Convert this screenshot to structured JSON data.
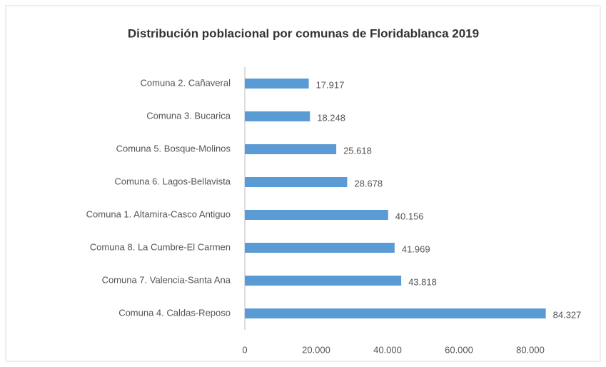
{
  "chart_data": {
    "type": "barh",
    "title": "Distribución poblacional por comunas de Floridablanca 2019",
    "categories": [
      "Comuna 2. Cañaveral",
      "Comuna 3. Bucarica",
      "Comuna 5. Bosque-Molinos",
      "Comuna 6. Lagos-Bellavista",
      "Comuna 1. Altamira-Casco Antiguo",
      "Comuna 8. La Cumbre-El Carmen",
      "Comuna 7. Valencia-Santa Ana",
      "Comuna 4. Caldas-Reposo"
    ],
    "values": [
      17917,
      18248,
      25618,
      28678,
      40156,
      41969,
      43818,
      84327
    ],
    "value_labels": [
      "17.917",
      "18.248",
      "25.618",
      "28.678",
      "40.156",
      "41.969",
      "43.818",
      "84.327"
    ],
    "color": "#5b9bd5",
    "xlim": [
      0,
      90000
    ],
    "xticks": [
      0,
      {
        "value": 20000,
        "label": "20.000"
      },
      {
        "value": 40000,
        "label": "40.000"
      },
      {
        "value": 60000,
        "label": "60.000"
      },
      {
        "value": 80000,
        "label": "80.000"
      }
    ]
  }
}
